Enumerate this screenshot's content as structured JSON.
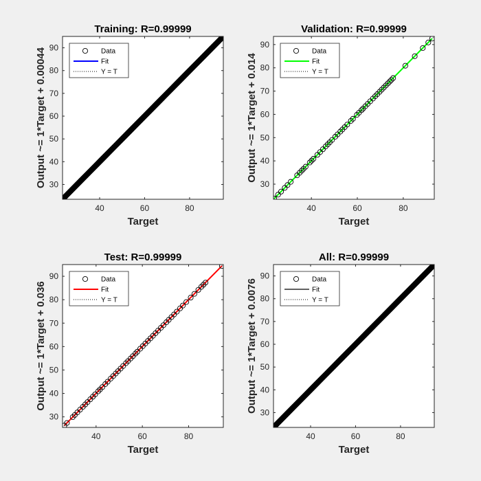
{
  "figure": {
    "background": "#f0f0f0"
  },
  "legend": {
    "entries": [
      "Data",
      "Fit",
      "Y = T"
    ],
    "location": "top-left"
  },
  "chart_data": [
    {
      "type": "scatter",
      "title": "Training: R=0.99999",
      "xlabel": "Target",
      "ylabel": "Output ~= 1*Target + 0.00044",
      "xlim": [
        23.5,
        95
      ],
      "ylim": [
        23.5,
        95
      ],
      "xticks": [
        40,
        60,
        80
      ],
      "yticks": [
        30,
        40,
        50,
        60,
        70,
        80,
        90
      ],
      "grid": false,
      "fit": {
        "slope": 1,
        "intercept": 0.00044,
        "color": "#0000ff"
      },
      "marker_color": "#0000ff",
      "data_range": [
        23.8,
        94.2
      ],
      "n_points": 700
    },
    {
      "type": "scatter",
      "title": "Validation: R=0.99999",
      "xlabel": "Target",
      "ylabel": "Output ~= 1*Target + 0.014",
      "xlim": [
        23.5,
        93.5
      ],
      "ylim": [
        23.5,
        93.5
      ],
      "xticks": [
        40,
        60,
        80
      ],
      "yticks": [
        30,
        40,
        50,
        60,
        70,
        80,
        90
      ],
      "grid": false,
      "fit": {
        "slope": 1,
        "intercept": 0.014,
        "color": "#00ff00"
      },
      "marker_color": "#00ff00",
      "x": [
        23.8,
        25.5,
        26.8,
        28.4,
        29.6,
        31.0,
        33.8,
        34.9,
        35.8,
        36.6,
        37.5,
        39.3,
        40.1,
        40.9,
        42.6,
        43.8,
        45.0,
        46.2,
        47.1,
        48.0,
        49.0,
        50.4,
        51.4,
        52.6,
        53.5,
        54.5,
        55.6,
        57.2,
        58.1,
        59.8,
        60.7,
        61.8,
        62.5,
        63.5,
        64.5,
        65.6,
        66.8,
        67.8,
        68.7,
        69.7,
        70.6,
        71.5,
        72.4,
        73.3,
        74.1,
        74.8,
        75.6,
        80.9,
        85.0,
        88.5,
        90.9,
        92.6
      ],
      "y": [
        23.8,
        25.5,
        26.8,
        28.4,
        29.6,
        31.0,
        33.8,
        34.9,
        35.8,
        36.6,
        37.5,
        39.3,
        40.1,
        40.9,
        42.6,
        43.8,
        45.0,
        46.2,
        47.1,
        48.0,
        49.0,
        50.4,
        51.4,
        52.6,
        53.5,
        54.5,
        55.6,
        57.2,
        58.1,
        59.8,
        60.7,
        61.8,
        62.5,
        63.5,
        64.5,
        65.6,
        66.8,
        67.8,
        68.7,
        69.7,
        70.6,
        71.5,
        72.4,
        73.3,
        74.1,
        74.8,
        75.6,
        80.9,
        85.0,
        88.5,
        90.9,
        92.6
      ]
    },
    {
      "type": "scatter",
      "title": "Test: R=0.99999",
      "xlabel": "Target",
      "ylabel": "Output ~= 1*Target + 0.036",
      "xlim": [
        25.5,
        95
      ],
      "ylim": [
        25.5,
        95
      ],
      "xticks": [
        40,
        60,
        80
      ],
      "yticks": [
        30,
        40,
        50,
        60,
        70,
        80,
        90
      ],
      "grid": false,
      "fit": {
        "slope": 1,
        "intercept": 0.036,
        "color": "#ff0000"
      },
      "marker_color": "#ff0000",
      "x": [
        26.3,
        27.4,
        29.9,
        30.8,
        31.9,
        33.1,
        34.3,
        35.3,
        36.3,
        37.5,
        38.6,
        39.6,
        40.9,
        41.7,
        42.7,
        44.0,
        45.0,
        46.3,
        47.4,
        48.5,
        49.5,
        50.6,
        51.7,
        52.9,
        53.8,
        54.9,
        55.9,
        57.0,
        57.8,
        59.1,
        60.2,
        61.3,
        62.4,
        63.5,
        64.6,
        65.7,
        66.8,
        68.0,
        69.1,
        70.4,
        71.4,
        72.6,
        73.7,
        74.9,
        76.3,
        77.5,
        79.0,
        80.9,
        82.5,
        84.2,
        85.5,
        86.4,
        87.3,
        94.4
      ],
      "y": [
        26.3,
        27.4,
        29.9,
        30.8,
        31.9,
        33.1,
        34.3,
        35.3,
        36.3,
        37.5,
        38.6,
        39.6,
        40.9,
        41.7,
        42.7,
        44.0,
        45.0,
        46.3,
        47.4,
        48.5,
        49.5,
        50.6,
        51.7,
        52.9,
        53.8,
        54.9,
        55.9,
        57.0,
        57.8,
        59.1,
        60.2,
        61.3,
        62.4,
        63.5,
        64.6,
        65.7,
        66.8,
        68.0,
        69.1,
        70.4,
        71.4,
        72.6,
        73.7,
        74.9,
        76.3,
        77.5,
        79.0,
        80.9,
        82.5,
        84.2,
        85.5,
        86.4,
        87.3,
        94.4
      ]
    },
    {
      "type": "scatter",
      "title": "All: R=0.99999",
      "xlabel": "Target",
      "ylabel": "Output ~= 1*Target + 0.0076",
      "xlim": [
        23.5,
        95
      ],
      "ylim": [
        23.5,
        95
      ],
      "xticks": [
        40,
        60,
        80
      ],
      "yticks": [
        30,
        40,
        50,
        60,
        70,
        80,
        90
      ],
      "grid": false,
      "fit": {
        "slope": 1,
        "intercept": 0.0076,
        "color": "#606060"
      },
      "marker_color": "#000000",
      "data_range": [
        23.8,
        94.2
      ],
      "n_points": 700
    }
  ]
}
